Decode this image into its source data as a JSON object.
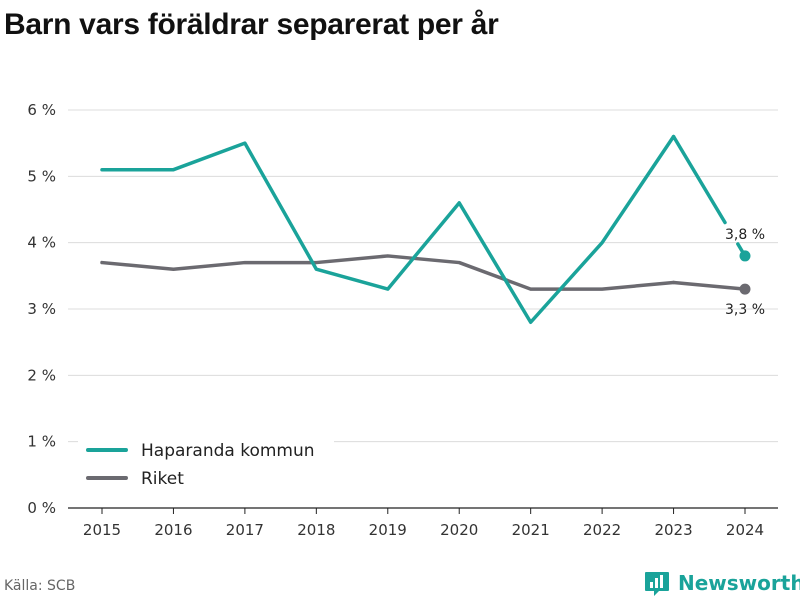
{
  "title": "Barn vars föräldrar separerat per år",
  "source": "Källa: SCB",
  "brand": {
    "name": "Newsworthy",
    "icon": "newsworthy-logo-icon",
    "color": "#1aa39a"
  },
  "chart_data": {
    "type": "line",
    "x": [
      "2015",
      "2016",
      "2017",
      "2018",
      "2019",
      "2020",
      "2021",
      "2022",
      "2023",
      "2024"
    ],
    "series": [
      {
        "name": "Haparanda kommun",
        "color": "#1aa39a",
        "values": [
          5.1,
          5.1,
          5.5,
          3.6,
          3.3,
          4.6,
          2.8,
          4.0,
          5.6,
          3.8
        ],
        "end_label": "3,8 %"
      },
      {
        "name": "Riket",
        "color": "#6b6a70",
        "values": [
          3.7,
          3.6,
          3.7,
          3.7,
          3.8,
          3.7,
          3.3,
          3.3,
          3.4,
          3.3
        ],
        "end_label": "3,3 %"
      }
    ],
    "ylim": [
      0,
      6
    ],
    "yticks": [
      0,
      1,
      2,
      3,
      4,
      5,
      6
    ],
    "ytick_labels": [
      "0 %",
      "1 %",
      "2 %",
      "3 %",
      "4 %",
      "5 %",
      "6 %"
    ],
    "grid": true,
    "legend_position": "bottom-left",
    "xlabel": "",
    "ylabel": ""
  }
}
